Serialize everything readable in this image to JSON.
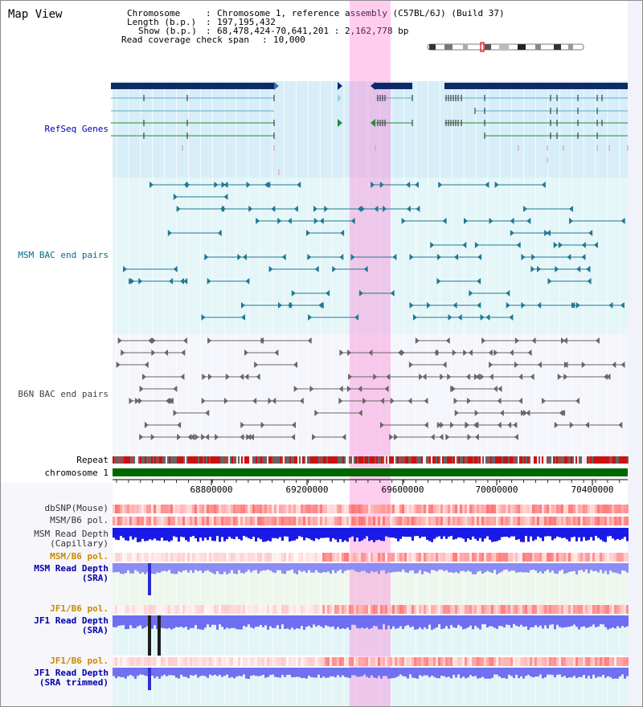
{
  "page": {
    "title": "Map View"
  },
  "header": {
    "chromosome_key": "Chromosome",
    "chromosome_value": "Chromosome 1, reference assembly (C57BL/6J) (Build 37)",
    "length_key": "Length (b.p.)",
    "length_value": "197,195,432",
    "show_key": "Show (b.p.)",
    "show_value": "68,478,424-70,641,201 : 2,162,778 bp",
    "coverage_key": "Read coverage check span",
    "coverage_value": "10,000"
  },
  "axis": {
    "ticks": [
      "68800000",
      "69200000",
      "69600000",
      "70000000",
      "70400000"
    ]
  },
  "tracks": {
    "refseq": "RefSeq Genes",
    "msm_bac": "MSM BAC end pairs",
    "b6n_bac": "B6N BAC end pairs",
    "repeat": "Repeat",
    "chromosome": "chromosome 1",
    "dbsnp": "dbSNP(Mouse)",
    "msm_b6_pol_1": "MSM/B6 pol.",
    "msm_depth_cap_1": "MSM Read Depth",
    "msm_depth_cap_2": "(Capillary)",
    "msm_b6_pol_2": "MSM/B6 pol.",
    "msm_depth_sra_1": "MSM Read Depth",
    "msm_depth_sra_2": "(SRA)",
    "jf1_b6_pol_1": "JF1/B6 pol.",
    "jf1_depth_sra_1": "JF1 Read Depth",
    "jf1_depth_sra_2": "(SRA)",
    "jf1_b6_pol_2": "JF1/B6 pol.",
    "jf1_depth_trim_1": "JF1 Read Depth",
    "jf1_depth_trim_2": "(SRA trimmed)"
  },
  "colors": {
    "refseq_label": "#0000aa",
    "msm_label": "#006c8a",
    "b6n_label": "#444444",
    "pol_label": "#cc8800",
    "depth_label": "#0000aa",
    "highlight": "#ff66cc",
    "chromosome_bar": "#006600"
  }
}
